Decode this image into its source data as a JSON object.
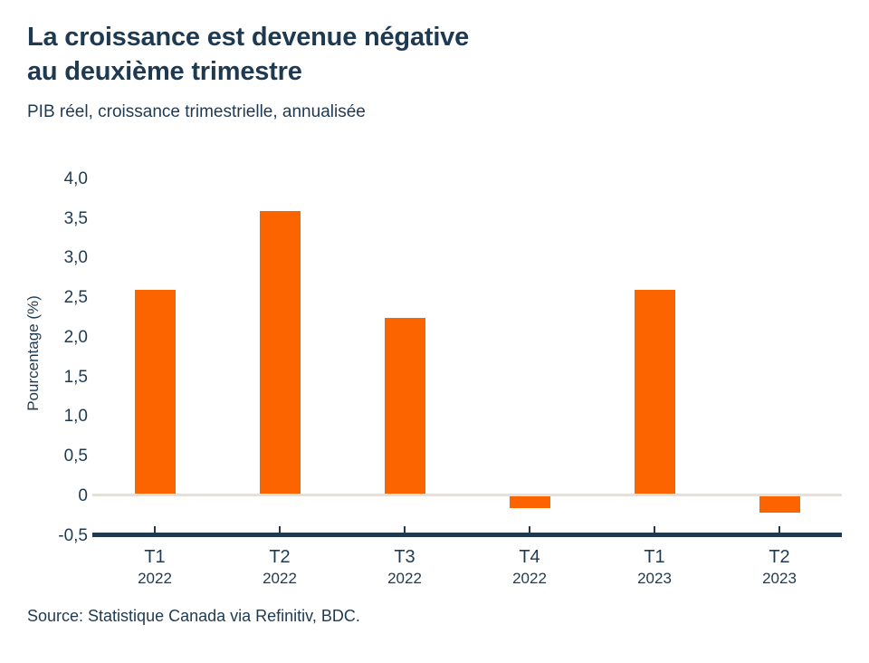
{
  "page": {
    "background": "#ffffff"
  },
  "colors": {
    "navy": "#1e3a52",
    "orange": "#fc6400",
    "zero_line": "#e8e0d7"
  },
  "header": {
    "title": "La croissance est devenue négative\nau deuxième trimestre",
    "subtitle": "PIB réel, croissance trimestrielle, annualisée"
  },
  "chart_data": {
    "type": "bar",
    "title": "La croissance est devenue négative au deuxième trimestre",
    "subtitle": "PIB réel, croissance trimestrielle, annualisée",
    "ylabel": "Pourcentage (%)",
    "xlabel": "",
    "categories": [
      "T1 2022",
      "T2 2022",
      "T3 2022",
      "T4 2022",
      "T1 2023",
      "T2 2023"
    ],
    "x_ticks": [
      {
        "quarter": "T1",
        "year": "2022"
      },
      {
        "quarter": "T2",
        "year": "2022"
      },
      {
        "quarter": "T3",
        "year": "2022"
      },
      {
        "quarter": "T4",
        "year": "2022"
      },
      {
        "quarter": "T1",
        "year": "2023"
      },
      {
        "quarter": "T2",
        "year": "2023"
      }
    ],
    "values": [
      2.6,
      3.6,
      2.25,
      -0.15,
      2.6,
      -0.2
    ],
    "ylim": [
      -0.5,
      4.0
    ],
    "ytick_values": [
      4.0,
      3.5,
      3.0,
      2.5,
      2.0,
      1.5,
      1.0,
      0.5,
      0,
      -0.5
    ],
    "ytick_labels": [
      "4,0",
      "3,5",
      "3,0",
      "2,5",
      "2,0",
      "1,5",
      "1,0",
      "0,5",
      "0",
      "-0,5"
    ],
    "bar_color": "#fc6400",
    "grid": false,
    "legend": null,
    "baseline": 0
  },
  "footer": {
    "source": "Source: Statistique Canada via Refinitiv, BDC."
  }
}
